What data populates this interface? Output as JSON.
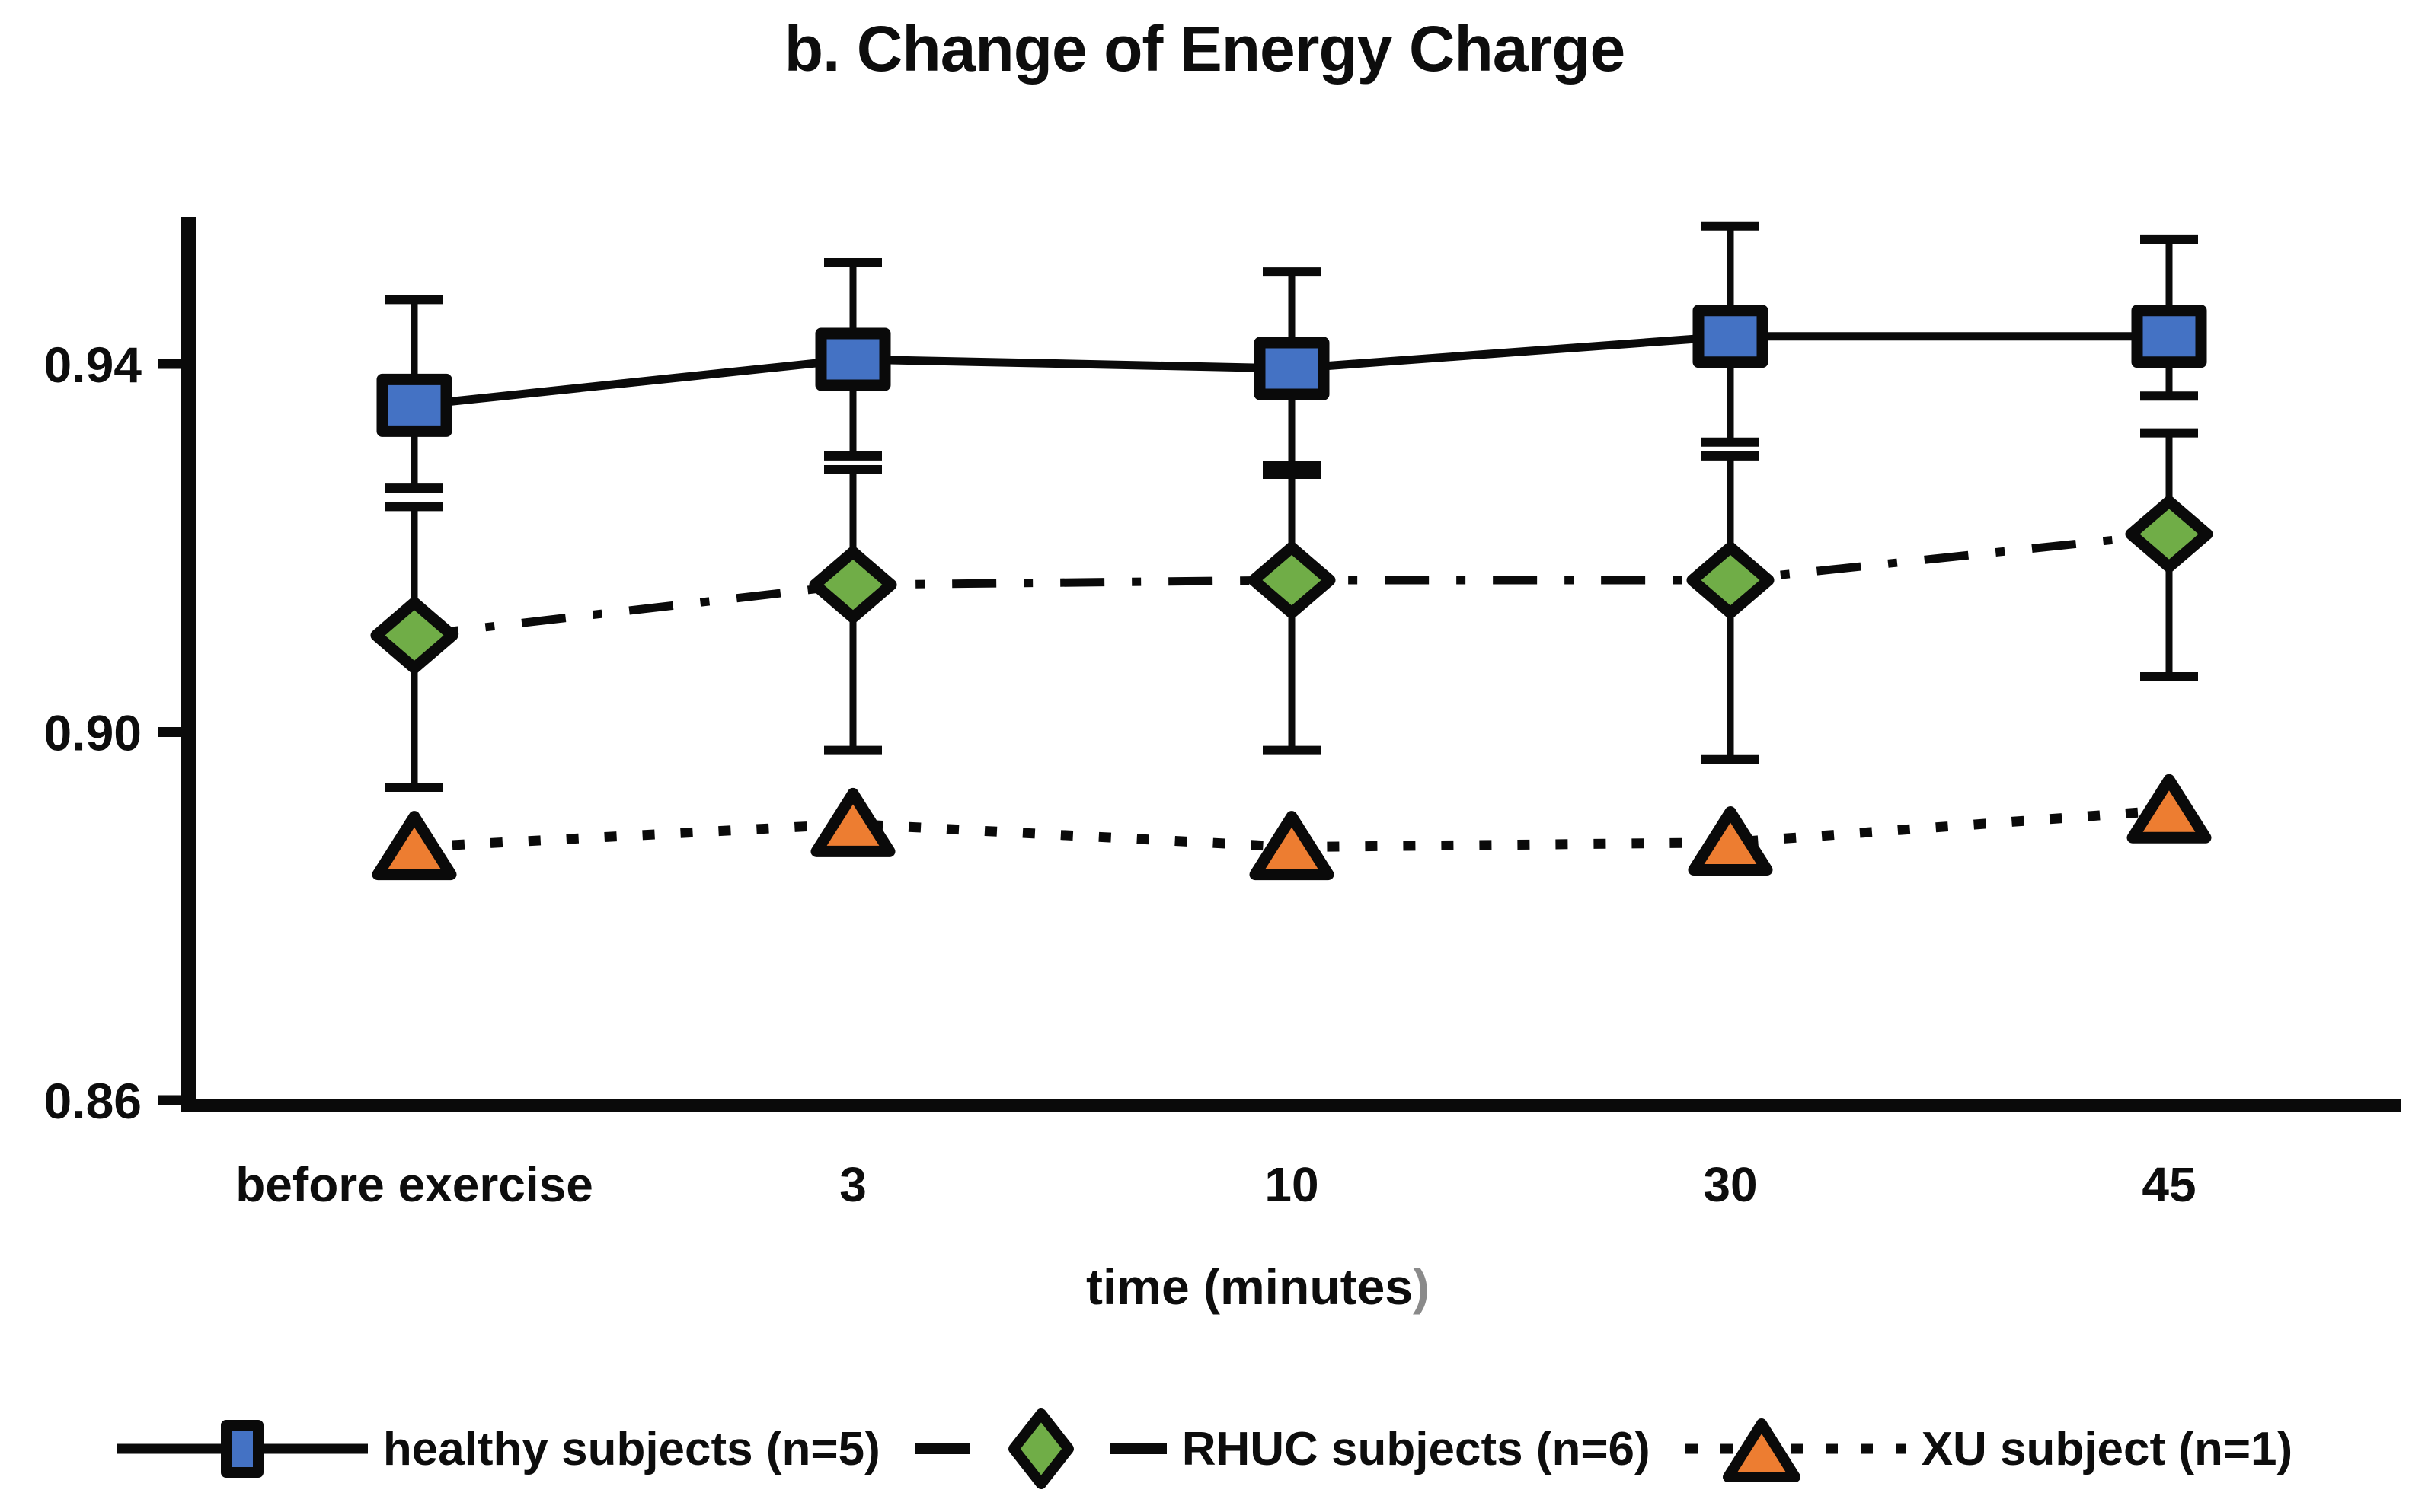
{
  "chart_data": {
    "type": "line",
    "title": "b. Change of Energy Charge",
    "categories": [
      "before exercise",
      "3",
      "10",
      "30",
      "45"
    ],
    "xlabel": "time (minutes)",
    "xlabel_main": "time (minutes",
    "xlabel_paren": ")",
    "ylabel": "",
    "y_ticks": [
      "0.94",
      "0.90",
      "0.86"
    ],
    "ylim": [
      0.86,
      0.956
    ],
    "grid": false,
    "legend_position": "bottom",
    "series": [
      {
        "name": "healthy subjects (n=5)",
        "marker": "square",
        "color": "#4472C4",
        "line_style": "solid",
        "values": [
          0.9355,
          0.9405,
          0.9395,
          0.943,
          0.943
        ],
        "error_upper": [
          0.947,
          0.951,
          0.95,
          0.955,
          0.9535
        ],
        "error_lower": [
          0.9265,
          0.93,
          0.928,
          0.9315,
          0.9365
        ]
      },
      {
        "name": "RHUC subjects (n=6)",
        "marker": "diamond",
        "color": "#70AD47",
        "line_style": "dash-dot",
        "values": [
          0.9105,
          0.916,
          0.9165,
          0.9165,
          0.9215
        ],
        "error_upper": [
          0.9245,
          0.9285,
          0.929,
          0.93,
          0.9325
        ],
        "error_lower": [
          0.894,
          0.898,
          0.898,
          0.897,
          0.906
        ]
      },
      {
        "name": "XU subject (n=1)",
        "marker": "triangle",
        "color": "#ED7D31",
        "line_style": "dotted",
        "values": [
          0.8875,
          0.89,
          0.8875,
          0.888,
          0.8915
        ]
      }
    ]
  }
}
